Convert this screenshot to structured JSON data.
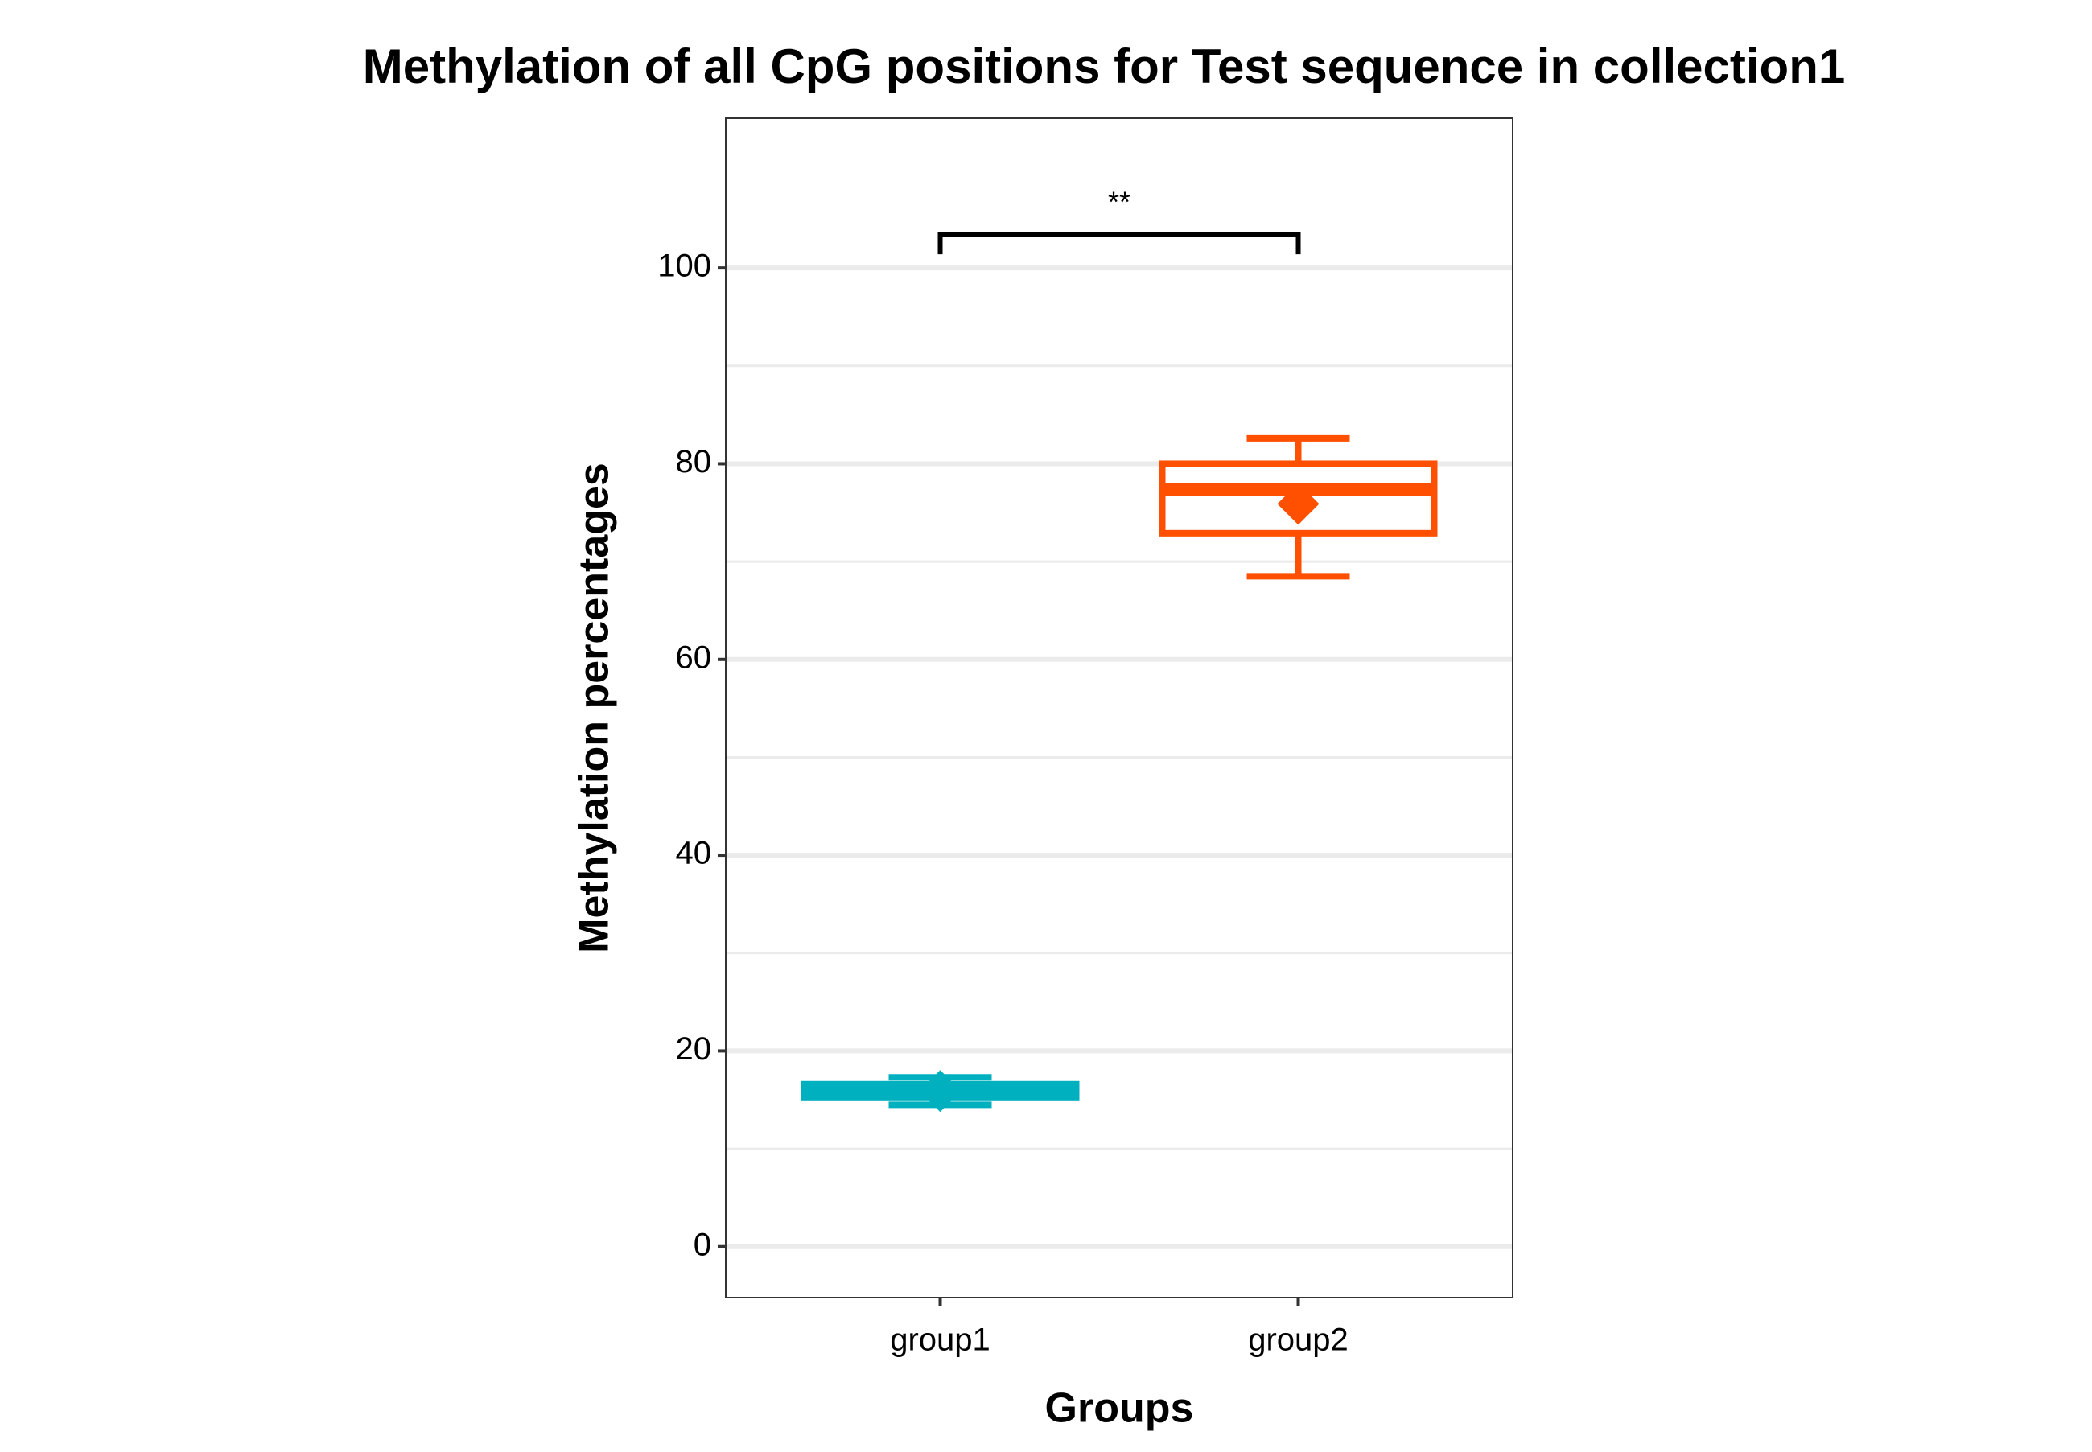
{
  "chart_data": {
    "type": "box",
    "title": "Methylation of all CpG positions for Test sequence in collection1",
    "x_label": "Groups",
    "y_label": "Methylation percentages",
    "categories": [
      "group1",
      "group2"
    ],
    "colors": [
      "#00b0be",
      "#ff4f00"
    ],
    "boxes": [
      {
        "min": 14.5,
        "q1": 15.2,
        "median": 16.0,
        "q3": 16.6,
        "max": 17.3,
        "mean": 15.9
      },
      {
        "min": 68.5,
        "q1": 72.9,
        "median": 77.4,
        "q3": 80.0,
        "max": 82.6,
        "mean": 75.9
      }
    ],
    "ylim": [
      -5.2,
      115.3
    ],
    "yticks": [
      0,
      20,
      40,
      60,
      80,
      100
    ],
    "minor_yticks": [
      10,
      30,
      50,
      70,
      90
    ],
    "grid": true,
    "significance": {
      "label": "**",
      "y": 103.4,
      "tip": 101.4
    }
  }
}
